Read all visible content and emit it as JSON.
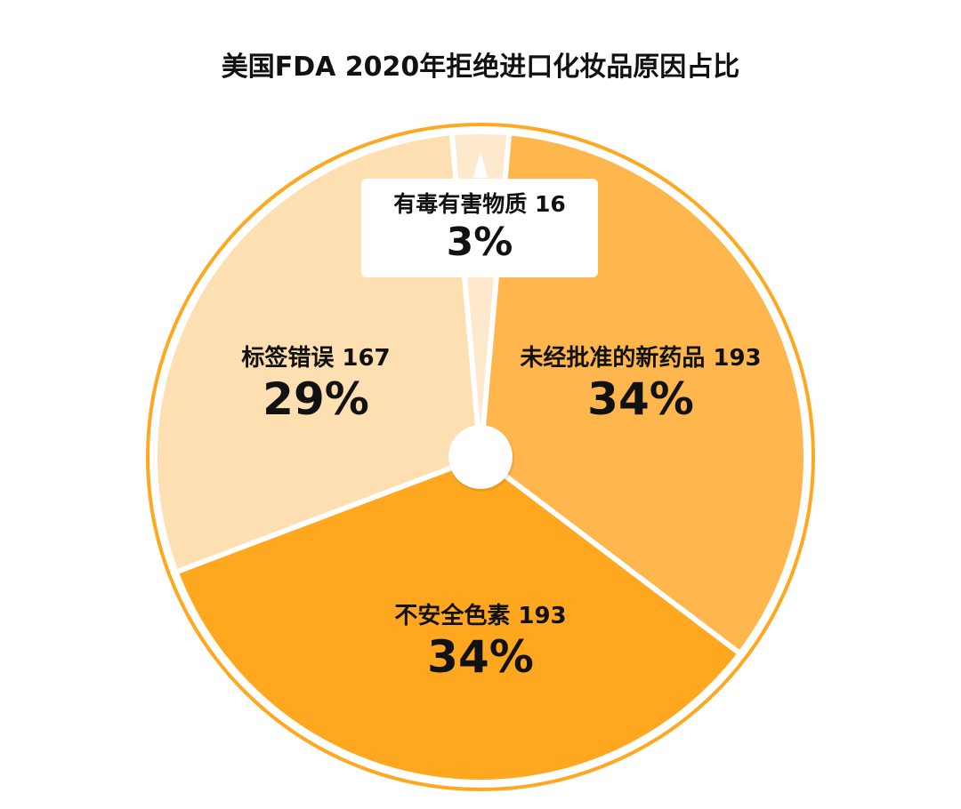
{
  "title": "美国FDA 2020年拒绝进口化妆品原因占比",
  "colors": {
    "ring": "#FFA81F",
    "slice_toxic": "#FFE9CC",
    "slice_unapproved": "#FFB74D",
    "slice_color_additive": "#FFA81F",
    "slice_label": "#FDDFB2"
  },
  "slices": [
    {
      "label": "有毒有害物质",
      "value": 16,
      "name_text": "有毒有害物质 16",
      "pct_text": "3%"
    },
    {
      "label": "未经批准的新药品",
      "value": 193,
      "name_text": "未经批准的新药品 193",
      "pct_text": "34%"
    },
    {
      "label": "不安全色素",
      "value": 193,
      "name_text": "不安全色素 193",
      "pct_text": "34%"
    },
    {
      "label": "标签错误",
      "value": 167,
      "name_text": "标签错误 167",
      "pct_text": "29%"
    }
  ],
  "chart_data": {
    "type": "pie",
    "title": "美国FDA 2020年拒绝进口化妆品原因占比",
    "categories": [
      "有毒有害物质",
      "未经批准的新药品",
      "不安全色素",
      "标签错误"
    ],
    "values": [
      16,
      193,
      193,
      167
    ],
    "percentages": [
      3,
      34,
      34,
      29
    ],
    "style": "donut-with-small-center-hole",
    "legend": "none (labels placed inside slices)",
    "start_angle": "top, clockwise"
  }
}
